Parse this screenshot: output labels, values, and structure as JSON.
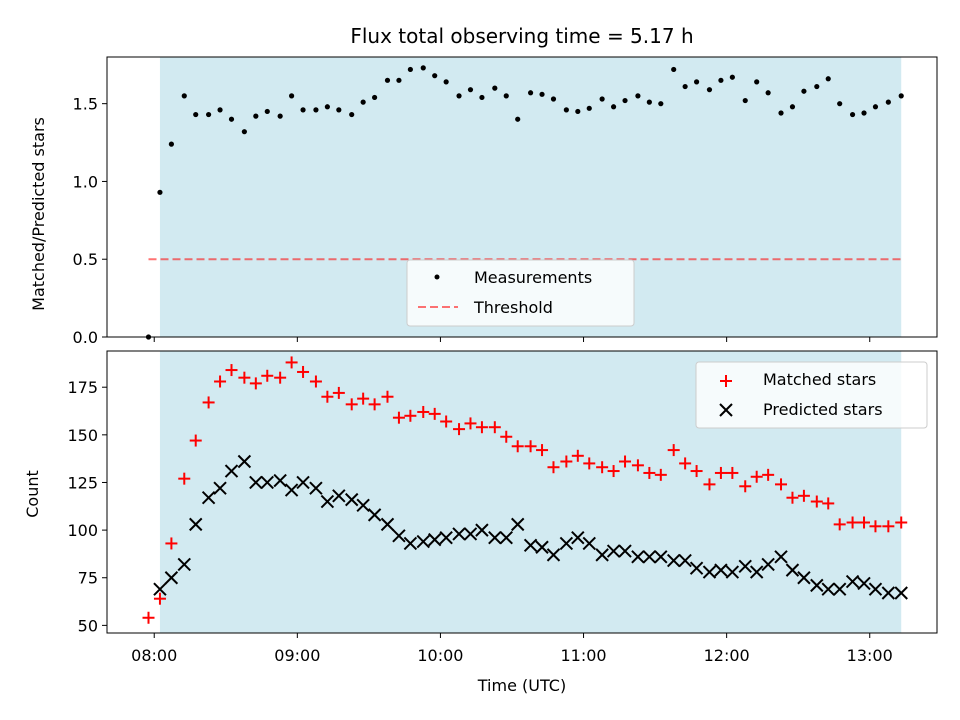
{
  "chart_data": {
    "type": "scatter",
    "title": "Flux total observing time = 5.17 h",
    "xlabel": "Time (UTC)",
    "x_tick_labels": [
      "08:00",
      "09:00",
      "10:00",
      "11:00",
      "12:00",
      "13:00"
    ],
    "x_tick_values_hours": [
      8,
      9,
      10,
      11,
      12,
      13
    ],
    "xlim_hours": [
      7.67,
      13.47
    ],
    "observing_window_hours": [
      8.04,
      13.22
    ],
    "colors": {
      "shade": "#add8e6",
      "matched": "#ff0000",
      "predicted": "#000000",
      "threshold": "#ff0000",
      "measurement": "#000000"
    },
    "top": {
      "ylabel": "Matched/Predicted stars",
      "ylim": [
        0,
        1.8
      ],
      "y_ticks": [
        "0.0",
        "0.5",
        "1.0",
        "1.5"
      ],
      "y_tick_values": [
        0,
        0.5,
        1.0,
        1.5
      ],
      "threshold_value": 0.5,
      "legend": [
        "Measurements",
        "Threshold"
      ],
      "measurements": [
        [
          7.96,
          0.0
        ],
        [
          8.04,
          0.93
        ],
        [
          8.12,
          1.24
        ],
        [
          8.21,
          1.55
        ],
        [
          8.29,
          1.43
        ],
        [
          8.38,
          1.43
        ],
        [
          8.46,
          1.46
        ],
        [
          8.54,
          1.4
        ],
        [
          8.63,
          1.32
        ],
        [
          8.71,
          1.42
        ],
        [
          8.79,
          1.45
        ],
        [
          8.88,
          1.42
        ],
        [
          8.96,
          1.55
        ],
        [
          9.04,
          1.46
        ],
        [
          9.13,
          1.46
        ],
        [
          9.21,
          1.48
        ],
        [
          9.29,
          1.46
        ],
        [
          9.38,
          1.43
        ],
        [
          9.46,
          1.51
        ],
        [
          9.54,
          1.54
        ],
        [
          9.63,
          1.65
        ],
        [
          9.71,
          1.65
        ],
        [
          9.79,
          1.72
        ],
        [
          9.88,
          1.73
        ],
        [
          9.96,
          1.68
        ],
        [
          10.04,
          1.64
        ],
        [
          10.13,
          1.55
        ],
        [
          10.21,
          1.59
        ],
        [
          10.29,
          1.54
        ],
        [
          10.38,
          1.6
        ],
        [
          10.46,
          1.55
        ],
        [
          10.54,
          1.4
        ],
        [
          10.63,
          1.57
        ],
        [
          10.71,
          1.56
        ],
        [
          10.79,
          1.53
        ],
        [
          10.88,
          1.46
        ],
        [
          10.96,
          1.45
        ],
        [
          11.04,
          1.47
        ],
        [
          11.13,
          1.53
        ],
        [
          11.21,
          1.48
        ],
        [
          11.29,
          1.52
        ],
        [
          11.38,
          1.55
        ],
        [
          11.46,
          1.51
        ],
        [
          11.54,
          1.5
        ],
        [
          11.63,
          1.72
        ],
        [
          11.71,
          1.61
        ],
        [
          11.79,
          1.64
        ],
        [
          11.88,
          1.59
        ],
        [
          11.96,
          1.65
        ],
        [
          12.04,
          1.67
        ],
        [
          12.13,
          1.52
        ],
        [
          12.21,
          1.64
        ],
        [
          12.29,
          1.57
        ],
        [
          12.38,
          1.44
        ],
        [
          12.46,
          1.48
        ],
        [
          12.54,
          1.58
        ],
        [
          12.63,
          1.61
        ],
        [
          12.71,
          1.66
        ],
        [
          12.79,
          1.5
        ],
        [
          12.88,
          1.43
        ],
        [
          12.96,
          1.44
        ],
        [
          13.04,
          1.48
        ],
        [
          13.13,
          1.51
        ],
        [
          13.22,
          1.55
        ]
      ]
    },
    "bottom": {
      "ylabel": "Count",
      "ylim": [
        46,
        194
      ],
      "y_ticks": [
        "50",
        "75",
        "100",
        "125",
        "150",
        "175"
      ],
      "y_tick_values": [
        50,
        75,
        100,
        125,
        150,
        175
      ],
      "legend": [
        "Matched stars",
        "Predicted stars"
      ],
      "matched": [
        [
          7.96,
          54
        ],
        [
          8.04,
          64
        ],
        [
          8.12,
          93
        ],
        [
          8.21,
          127
        ],
        [
          8.29,
          147
        ],
        [
          8.38,
          167
        ],
        [
          8.46,
          178
        ],
        [
          8.54,
          184
        ],
        [
          8.63,
          180
        ],
        [
          8.71,
          177
        ],
        [
          8.79,
          181
        ],
        [
          8.88,
          180
        ],
        [
          8.96,
          188
        ],
        [
          9.04,
          183
        ],
        [
          9.13,
          178
        ],
        [
          9.21,
          170
        ],
        [
          9.29,
          172
        ],
        [
          9.38,
          166
        ],
        [
          9.46,
          169
        ],
        [
          9.54,
          166
        ],
        [
          9.63,
          170
        ],
        [
          9.71,
          159
        ],
        [
          9.79,
          160
        ],
        [
          9.88,
          162
        ],
        [
          9.96,
          161
        ],
        [
          10.04,
          157
        ],
        [
          10.13,
          153
        ],
        [
          10.21,
          156
        ],
        [
          10.29,
          154
        ],
        [
          10.38,
          154
        ],
        [
          10.46,
          149
        ],
        [
          10.54,
          144
        ],
        [
          10.63,
          144
        ],
        [
          10.71,
          142
        ],
        [
          10.79,
          133
        ],
        [
          10.88,
          136
        ],
        [
          10.96,
          139
        ],
        [
          11.04,
          135
        ],
        [
          11.13,
          133
        ],
        [
          11.21,
          131
        ],
        [
          11.29,
          136
        ],
        [
          11.38,
          134
        ],
        [
          11.46,
          130
        ],
        [
          11.54,
          129
        ],
        [
          11.63,
          142
        ],
        [
          11.71,
          135
        ],
        [
          11.79,
          131
        ],
        [
          11.88,
          124
        ],
        [
          11.96,
          130
        ],
        [
          12.04,
          130
        ],
        [
          12.13,
          123
        ],
        [
          12.21,
          128
        ],
        [
          12.29,
          129
        ],
        [
          12.38,
          124
        ],
        [
          12.46,
          117
        ],
        [
          12.54,
          118
        ],
        [
          12.63,
          115
        ],
        [
          12.71,
          114
        ],
        [
          12.79,
          103
        ],
        [
          12.88,
          104
        ],
        [
          12.96,
          104
        ],
        [
          13.04,
          102
        ],
        [
          13.13,
          102
        ],
        [
          13.22,
          104
        ]
      ],
      "predicted": [
        [
          8.04,
          69
        ],
        [
          8.12,
          75
        ],
        [
          8.21,
          82
        ],
        [
          8.29,
          103
        ],
        [
          8.38,
          117
        ],
        [
          8.46,
          122
        ],
        [
          8.54,
          131
        ],
        [
          8.63,
          136
        ],
        [
          8.71,
          125
        ],
        [
          8.79,
          125
        ],
        [
          8.88,
          126
        ],
        [
          8.96,
          121
        ],
        [
          9.04,
          125
        ],
        [
          9.13,
          122
        ],
        [
          9.21,
          115
        ],
        [
          9.29,
          118
        ],
        [
          9.38,
          116
        ],
        [
          9.46,
          113
        ],
        [
          9.54,
          108
        ],
        [
          9.63,
          103
        ],
        [
          9.71,
          97
        ],
        [
          9.79,
          93
        ],
        [
          9.88,
          94
        ],
        [
          9.96,
          95
        ],
        [
          10.04,
          96
        ],
        [
          10.13,
          98
        ],
        [
          10.21,
          98
        ],
        [
          10.29,
          100
        ],
        [
          10.38,
          96
        ],
        [
          10.46,
          96
        ],
        [
          10.54,
          103
        ],
        [
          10.63,
          92
        ],
        [
          10.71,
          91
        ],
        [
          10.79,
          87
        ],
        [
          10.88,
          93
        ],
        [
          10.96,
          96
        ],
        [
          11.04,
          93
        ],
        [
          11.13,
          87
        ],
        [
          11.21,
          89
        ],
        [
          11.29,
          89
        ],
        [
          11.38,
          86
        ],
        [
          11.46,
          86
        ],
        [
          11.54,
          86
        ],
        [
          11.63,
          84
        ],
        [
          11.71,
          84
        ],
        [
          11.79,
          80
        ],
        [
          11.88,
          78
        ],
        [
          11.96,
          79
        ],
        [
          12.04,
          78
        ],
        [
          12.13,
          81
        ],
        [
          12.21,
          78
        ],
        [
          12.29,
          82
        ],
        [
          12.38,
          86
        ],
        [
          12.46,
          79
        ],
        [
          12.54,
          75
        ],
        [
          12.63,
          71
        ],
        [
          12.71,
          69
        ],
        [
          12.79,
          69
        ],
        [
          12.88,
          73
        ],
        [
          12.96,
          72
        ],
        [
          13.04,
          69
        ],
        [
          13.13,
          67
        ],
        [
          13.22,
          67
        ]
      ]
    }
  }
}
